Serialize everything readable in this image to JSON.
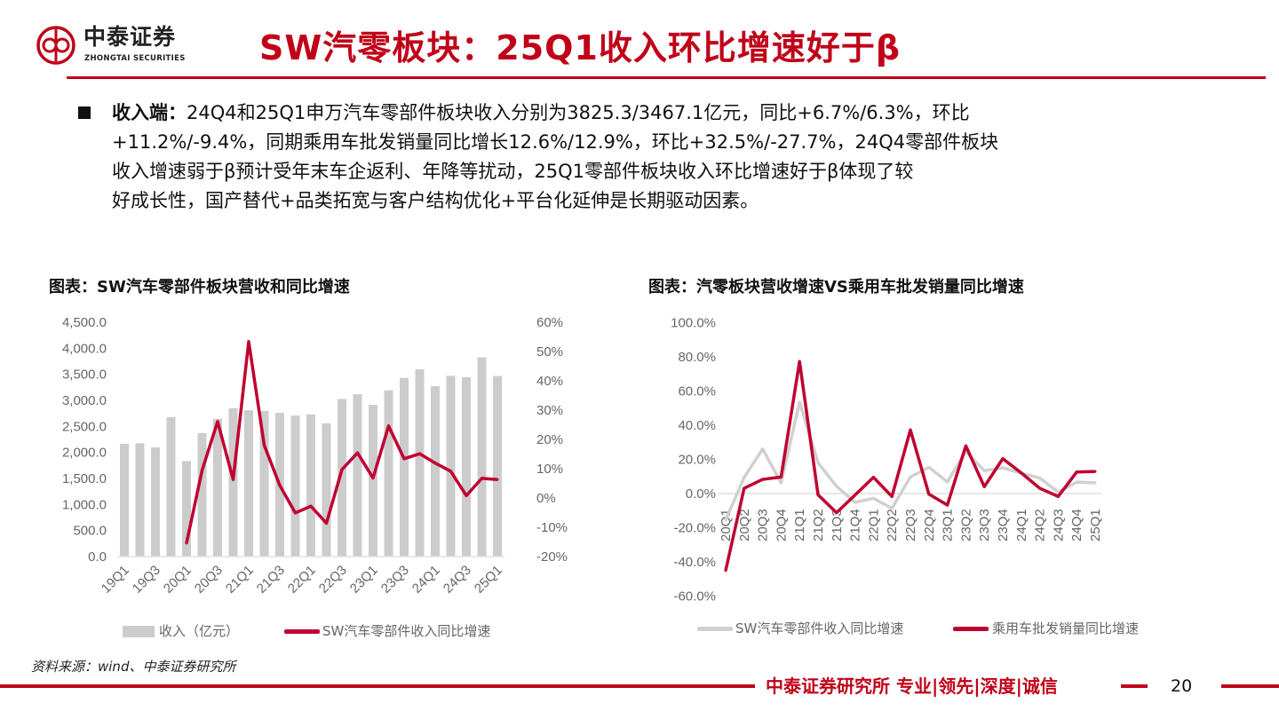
{
  "header": {
    "logo_name": "中泰证券",
    "logo_en": "ZHONGTAI SECURITIES",
    "title": "SW汽零板块：25Q1收入环比增速好于β"
  },
  "body": {
    "label": "收入端：",
    "lines": [
      "24Q4和25Q1申万汽车零部件板块收入分别为3825.3/3467.1亿元，同比+6.7%/6.3%，环比",
      "+11.2%/-9.4%，同期乘用车批发销量同比增长12.6%/12.9%，环比+32.5%/-27.7%，24Q4零部件板块",
      "收入增速弱于β预计受年末车企返利、年降等扰动，25Q1零部件板块收入环比增速好于β体现了较",
      "好成长性，国产替代+品类拓宽与客户结构优化+平台化延伸是长期驱动因素。"
    ]
  },
  "chart_data": [
    {
      "type": "bar+line",
      "title": "图表：SW汽车零部件板块营收和同比增速",
      "categories": [
        "19Q1",
        "19Q2",
        "19Q3",
        "19Q4",
        "20Q1",
        "20Q2",
        "20Q3",
        "20Q4",
        "21Q1",
        "21Q2",
        "21Q3",
        "21Q4",
        "22Q1",
        "22Q2",
        "22Q3",
        "22Q4",
        "23Q1",
        "23Q2",
        "23Q3",
        "23Q4",
        "24Q1",
        "24Q2",
        "24Q3",
        "24Q4",
        "25Q1"
      ],
      "x_tick_labels": [
        "19Q1",
        "19Q3",
        "20Q1",
        "20Q3",
        "21Q1",
        "21Q3",
        "22Q1",
        "22Q3",
        "23Q1",
        "23Q3",
        "24Q1",
        "24Q3",
        "25Q1"
      ],
      "y_left": {
        "range": [
          0,
          4500
        ],
        "ticks": [
          "0.0",
          "500.0",
          "1,000.0",
          "1,500.0",
          "2,000.0",
          "2,500.0",
          "3,000.0",
          "3,500.0",
          "4,000.0",
          "4,500.0"
        ]
      },
      "y_right": {
        "range": [
          -20,
          60
        ],
        "ticks": [
          "-20%",
          "-10%",
          "0%",
          "10%",
          "20%",
          "30%",
          "40%",
          "50%",
          "60%"
        ]
      },
      "series": [
        {
          "name": "收入（亿元）",
          "kind": "bar",
          "axis": "left",
          "color": "#cccccc",
          "values": [
            2166,
            2177,
            2098,
            2679,
            1835,
            2371,
            2645,
            2850,
            2810,
            2799,
            2759,
            2708,
            2730,
            2559,
            3027,
            3118,
            2913,
            3192,
            3431,
            3597,
            3272,
            3471,
            3443,
            3825.3,
            3467.1
          ]
        },
        {
          "name": "SW汽车零部件收入同比增速",
          "kind": "line",
          "axis": "right",
          "color": "#c00030",
          "values": [
            null,
            null,
            null,
            null,
            -15.4,
            9.4,
            26.1,
            6.3,
            53.4,
            18.0,
            4.3,
            -5.1,
            -2.8,
            -8.6,
            9.7,
            15.4,
            6.8,
            24.6,
            13.4,
            15.1,
            11.9,
            9.1,
            0.8,
            6.7,
            6.3
          ]
        }
      ],
      "legend": "bottom"
    },
    {
      "type": "line",
      "title": "图表：汽零板块营收增速VS乘用车批发销量同比增速",
      "categories": [
        "20Q1",
        "20Q2",
        "20Q3",
        "20Q4",
        "21Q1",
        "21Q2",
        "21Q3",
        "21Q4",
        "22Q1",
        "22Q2",
        "22Q3",
        "22Q4",
        "23Q1",
        "23Q2",
        "23Q3",
        "23Q4",
        "24Q1",
        "24Q2",
        "24Q3",
        "24Q4",
        "25Q1"
      ],
      "y": {
        "range": [
          -60,
          100
        ],
        "ticks": [
          "-60.0%",
          "-40.0%",
          "-20.0%",
          "0.0%",
          "20.0%",
          "40.0%",
          "60.0%",
          "80.0%",
          "100.0%"
        ]
      },
      "series": [
        {
          "name": "SW汽车零部件收入同比增速",
          "color": "#d0d0d0",
          "values": [
            -15.4,
            9.4,
            26.1,
            6.3,
            53.4,
            18.0,
            4.3,
            -5.1,
            -2.8,
            -8.6,
            9.7,
            15.4,
            6.8,
            24.6,
            13.4,
            15.1,
            11.9,
            9.1,
            0.8,
            6.7,
            6.3
          ]
        },
        {
          "name": "乘用车批发销量同比增速",
          "color": "#c00030",
          "values": [
            -45.0,
            3.1,
            8.3,
            9.7,
            77.2,
            -0.7,
            -11.2,
            -0.9,
            9.5,
            -1.7,
            37.2,
            -0.3,
            -6.7,
            27.9,
            4.0,
            20.4,
            12.1,
            3.1,
            -1.7,
            12.6,
            12.9
          ]
        }
      ],
      "legend": "bottom"
    }
  ],
  "footer": {
    "source": "资料来源：wind、中泰证券研究所",
    "slogan": "中泰证券研究所 专业|领先|深度|诚信",
    "page": "20"
  }
}
